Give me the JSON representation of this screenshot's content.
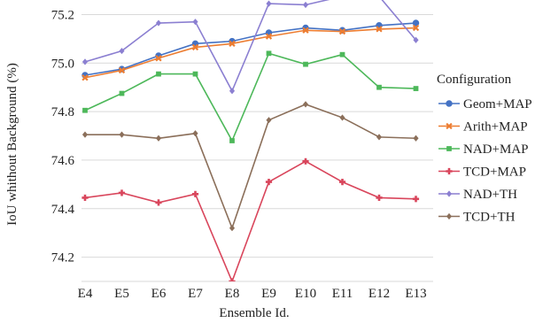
{
  "chart_data": {
    "type": "line",
    "xlabel": "Ensemble Id.",
    "ylabel": "IoU whithout Background (%)",
    "categories": [
      "E4",
      "E5",
      "E6",
      "E7",
      "E8",
      "E9",
      "E10",
      "E11",
      "E12",
      "E13"
    ],
    "ylim": [
      74.1,
      75.26
    ],
    "yticks": [
      "74.2",
      "74.4",
      "74.6",
      "74.8",
      "75.0",
      "75.2"
    ],
    "grid": "horizontal",
    "legend": {
      "title": "Configuration",
      "placement": "right"
    },
    "series": [
      {
        "name": "Geom+MAP",
        "color": "#4472c4",
        "marker": "circle",
        "values": [
          74.95,
          74.975,
          75.03,
          75.08,
          75.09,
          75.125,
          75.145,
          75.135,
          75.155,
          75.165
        ]
      },
      {
        "name": "Arith+MAP",
        "color": "#ed7d31",
        "marker": "x",
        "values": [
          74.94,
          74.97,
          75.02,
          75.065,
          75.08,
          75.11,
          75.135,
          75.13,
          75.14,
          75.145
        ]
      },
      {
        "name": "NAD+MAP",
        "color": "#4db85a",
        "marker": "square",
        "values": [
          74.805,
          74.875,
          74.955,
          74.955,
          74.68,
          75.04,
          74.995,
          75.035,
          74.9,
          74.895
        ]
      },
      {
        "name": "TCD+MAP",
        "color": "#d9465c",
        "marker": "plus",
        "values": [
          74.445,
          74.465,
          74.425,
          74.46,
          74.1,
          74.51,
          74.595,
          74.51,
          74.445,
          74.44
        ]
      },
      {
        "name": "NAD+TH",
        "color": "#8b7fd1",
        "marker": "diamond",
        "values": [
          75.005,
          75.05,
          75.165,
          75.17,
          74.885,
          75.245,
          75.24,
          75.275,
          75.275,
          75.095
        ]
      },
      {
        "name": "TCD+TH",
        "color": "#8b6f5a",
        "marker": "diamond",
        "values": [
          74.705,
          74.705,
          74.69,
          74.71,
          74.32,
          74.765,
          74.83,
          74.775,
          74.695,
          74.69
        ]
      }
    ]
  }
}
